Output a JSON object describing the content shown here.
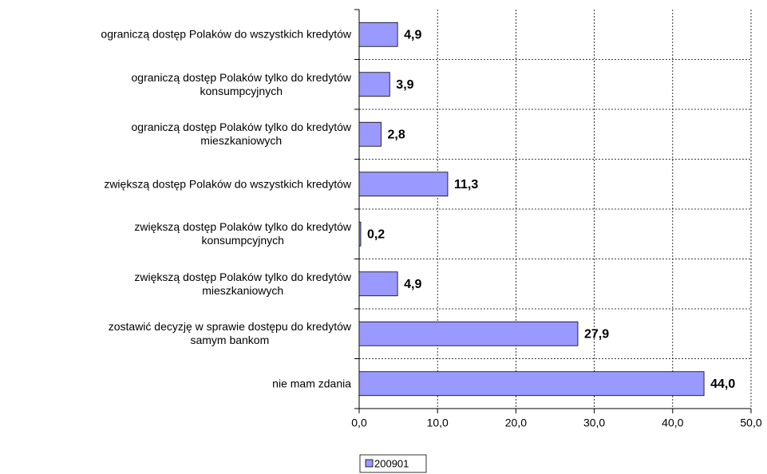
{
  "chart_data": {
    "type": "bar",
    "orientation": "horizontal",
    "categories": [
      "ograniczą dostęp Polaków do wszystkich kredytów",
      "ograniczą dostęp Polaków tylko do kredytów\nkonsumpcyjnych",
      "ograniczą dostęp Polaków tylko do kredytów\nmieszkaniowych",
      "zwiększą dostęp Polaków do wszystkich kredytów",
      "zwiększą dostęp Polaków tylko do kredytów\nkonsumpcyjnych",
      "zwiększą dostęp Polaków tylko do kredytów\nmieszkaniowych",
      "zostawić decyzję w sprawie dostępu do kredytów\nsamym bankom",
      "nie mam zdania"
    ],
    "series": [
      {
        "name": "200901",
        "color": "#9999ff",
        "values": [
          4.9,
          3.9,
          2.8,
          11.3,
          0.2,
          4.9,
          27.9,
          44.0
        ],
        "value_labels": [
          "4,9",
          "3,9",
          "2,8",
          "11,3",
          "0,2",
          "4,9",
          "27,9",
          "44,0"
        ]
      }
    ],
    "xlim": [
      0,
      50
    ],
    "xticks": [
      {
        "value": 0,
        "label": "0,0"
      },
      {
        "value": 10,
        "label": "10,0"
      },
      {
        "value": 20,
        "label": "20,0"
      },
      {
        "value": 30,
        "label": "30,0"
      },
      {
        "value": 40,
        "label": "40,0"
      },
      {
        "value": 50,
        "label": "50,0"
      }
    ],
    "grid": true,
    "legend": "bottom"
  }
}
